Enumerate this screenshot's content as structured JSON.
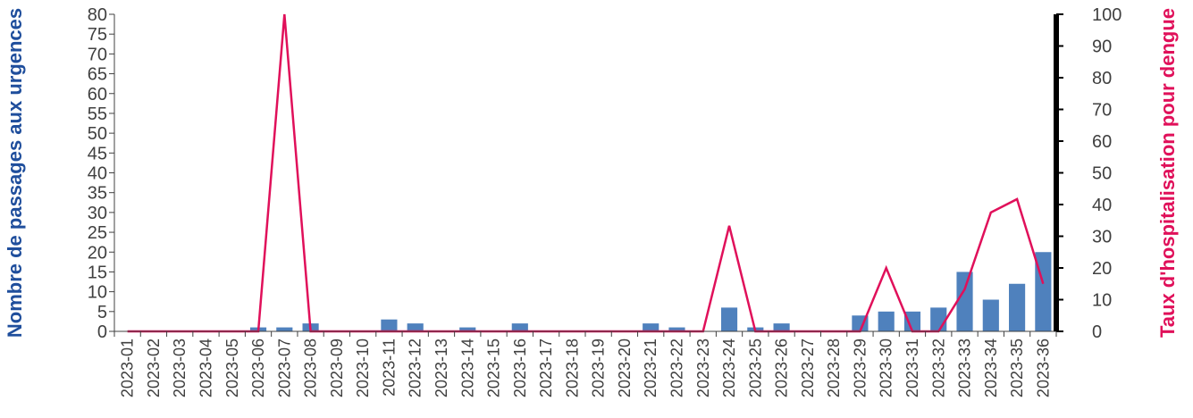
{
  "chart_data": {
    "type": "bar",
    "categories": [
      "2023-01",
      "2023-02",
      "2023-03",
      "2023-04",
      "2023-05",
      "2023-06",
      "2023-07",
      "2023-08",
      "2023-09",
      "2023-10",
      "2023-11",
      "2023-12",
      "2023-13",
      "2023-14",
      "2023-15",
      "2023-16",
      "2023-17",
      "2023-18",
      "2023-19",
      "2023-20",
      "2023-21",
      "2023-22",
      "2023-23",
      "2023-24",
      "2023-25",
      "2023-26",
      "2023-27",
      "2023-28",
      "2023-29",
      "2023-30",
      "2023-31",
      "2023-32",
      "2023-33",
      "2023-34",
      "2023-35",
      "2023-36"
    ],
    "series": [
      {
        "type": "bar",
        "axis": "left",
        "color": "#4f81bd",
        "values": [
          0,
          0,
          0,
          0,
          0,
          1,
          1,
          2,
          0,
          0,
          3,
          2,
          0,
          1,
          0,
          2,
          0,
          0,
          0,
          0,
          2,
          1,
          0,
          6,
          1,
          2,
          0,
          0,
          4,
          5,
          5,
          6,
          15,
          8,
          12,
          20
        ]
      },
      {
        "type": "line",
        "axis": "right",
        "color": "#e0105a",
        "values": [
          0,
          0,
          0,
          0,
          0,
          0,
          100,
          0,
          0,
          0,
          0,
          0,
          0,
          0,
          0,
          0,
          0,
          0,
          0,
          0,
          0,
          0,
          0,
          33.3,
          0,
          0,
          0,
          0,
          0,
          20,
          0,
          0,
          13.3,
          37.5,
          41.7,
          15
        ]
      }
    ],
    "ylabel": "Nombre de passages  aux urgences",
    "ylabel_color": "#1f4e9c",
    "ylim": [
      0,
      80
    ],
    "yticks": [
      0,
      5,
      10,
      15,
      20,
      25,
      30,
      35,
      40,
      45,
      50,
      55,
      60,
      65,
      70,
      75,
      80
    ],
    "y2label": "Taux d'hospitalisation  pour dengue",
    "y2label_color": "#e0105a",
    "y2lim": [
      0,
      100
    ],
    "y2ticks": [
      0,
      10,
      20,
      30,
      40,
      50,
      60,
      70,
      80,
      90,
      100
    ],
    "grid": false,
    "legend": "none"
  }
}
